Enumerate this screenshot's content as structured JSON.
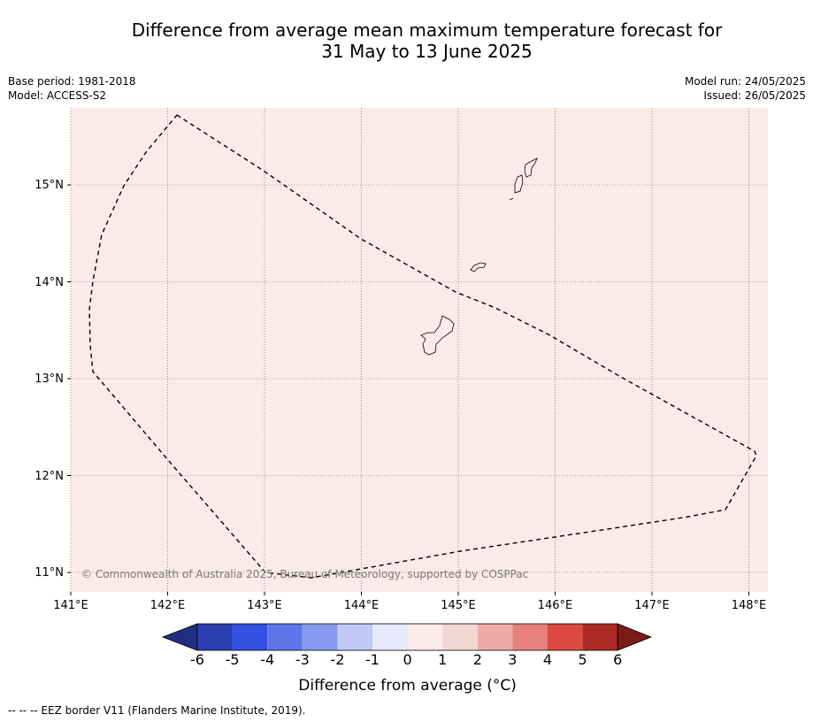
{
  "title": {
    "line1": "Difference from average mean maximum temperature forecast for",
    "line2": "31 May to 13 June 2025"
  },
  "meta": {
    "base_period": "Base period: 1981-2018",
    "model": "Model: ACCESS-S2",
    "model_run": "Model run: 24/05/2025",
    "issued": "Issued: 26/05/2025"
  },
  "map": {
    "background_color": "#fbeae9",
    "lon_labels": [
      "141°E",
      "142°E",
      "143°E",
      "144°E",
      "145°E",
      "146°E",
      "147°E",
      "148°E"
    ],
    "lat_labels": [
      "15°N",
      "14°N",
      "13°N",
      "12°N",
      "11°N"
    ],
    "copyright": "© Commonwealth of Australia 2025, Bureau of Meteorology, supported by COSPPac"
  },
  "colorbar": {
    "ticks": [
      "-6",
      "-5",
      "-4",
      "-3",
      "-2",
      "-1",
      "0",
      "1",
      "2",
      "3",
      "4",
      "5",
      "6"
    ],
    "colors": [
      "#2a3fb0",
      "#3350e0",
      "#5f76e8",
      "#8799ee",
      "#c1c9f6",
      "#e6e9fc",
      "#fbeae9",
      "#f1d6d4",
      "#eeaaa7",
      "#e6807c",
      "#da4a40",
      "#ae2a24"
    ],
    "under_color": "#212e80",
    "over_color": "#7b1c18",
    "label": "Difference from average (°C)"
  },
  "footer": "--  --  -- EEZ border V11 (Flanders Marine Institute, 2019)."
}
